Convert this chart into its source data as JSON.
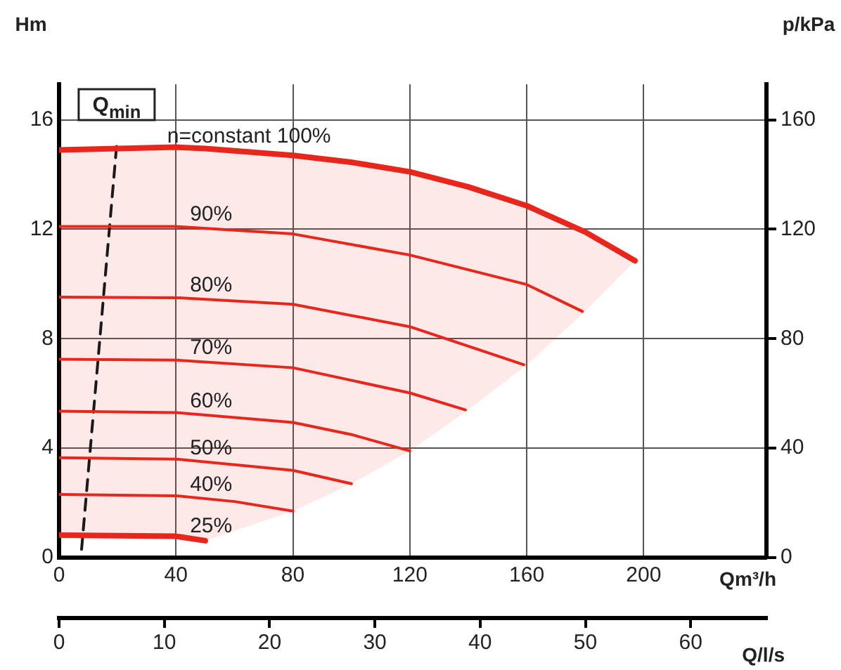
{
  "chart_data": {
    "type": "line",
    "ylabel": "Hm",
    "y2label": "p/kPa",
    "xlabel": "Qm³/h",
    "x2label": "Q/l/s",
    "xlim": [
      0,
      242
    ],
    "xticks": [
      0,
      40,
      80,
      120,
      160,
      200
    ],
    "ylim": [
      0,
      17.3
    ],
    "yticks": [
      0,
      4,
      8,
      12,
      16
    ],
    "y2lim": [
      0,
      173
    ],
    "y2ticks": [
      0,
      40,
      80,
      120,
      160
    ],
    "x2lim": [
      0,
      67.2
    ],
    "x2ticks": [
      0,
      10,
      20,
      30,
      40,
      50,
      60
    ],
    "grid": true,
    "legend": false,
    "marker": "none",
    "line_style": "solid",
    "series": [
      {
        "name": "n=constant 100%",
        "color": "#e8261c",
        "x": [
          0,
          40,
          50,
          80,
          100,
          120,
          140,
          160,
          180,
          197
        ],
        "values": [
          14.9,
          15.0,
          14.95,
          14.7,
          14.45,
          14.1,
          13.55,
          12.86,
          11.9,
          10.85
        ],
        "lower": [
          0.82,
          0.8,
          0.62,
          1.7,
          2.7,
          3.9,
          5.4,
          7.05,
          9.0,
          10.85
        ],
        "upper": [
          14.9,
          15.0,
          14.95,
          14.7,
          14.45,
          14.1,
          13.55,
          12.86,
          11.9,
          10.85
        ]
      },
      {
        "name": "90%",
        "color": "#e8261c",
        "x": [
          0,
          40,
          80,
          120,
          160,
          179
        ],
        "values": [
          12.1,
          12.1,
          11.83,
          11.06,
          9.98,
          9.0
        ]
      },
      {
        "name": "80%",
        "color": "#e8261c",
        "x": [
          0,
          40,
          80,
          120,
          159
        ],
        "values": [
          9.52,
          9.5,
          9.26,
          8.44,
          7.05
        ]
      },
      {
        "name": "70%",
        "color": "#e8261c",
        "x": [
          0,
          40,
          80,
          120,
          139
        ],
        "values": [
          7.25,
          7.22,
          6.94,
          6.02,
          5.4
        ]
      },
      {
        "name": "60%",
        "color": "#e8261c",
        "x": [
          0,
          40,
          80,
          100,
          120
        ],
        "values": [
          5.35,
          5.3,
          4.94,
          4.5,
          3.9
        ]
      },
      {
        "name": "50%",
        "color": "#e8261c",
        "x": [
          0,
          40,
          80,
          100
        ],
        "values": [
          3.65,
          3.6,
          3.19,
          2.7
        ]
      },
      {
        "name": "40%",
        "color": "#e8261c",
        "x": [
          0,
          40,
          60,
          80
        ],
        "values": [
          2.31,
          2.26,
          2.05,
          1.7
        ]
      },
      {
        "name": "25%",
        "color": "#e8261c",
        "x": [
          0,
          40,
          50
        ],
        "values": [
          0.82,
          0.78,
          0.62
        ]
      },
      {
        "name": "Q$_{min}$",
        "color": "#1a1a1a",
        "line_style": "dashed",
        "x": [
          7.7,
          19.7
        ],
        "values": [
          0.3,
          15.07
        ]
      }
    ]
  }
}
